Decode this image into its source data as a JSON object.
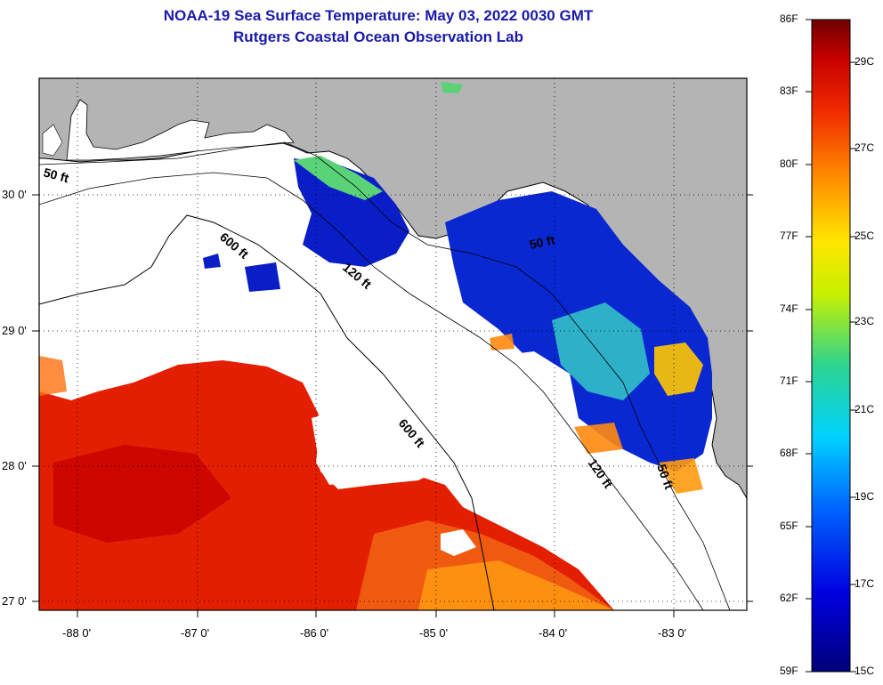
{
  "title": {
    "line1": "NOAA-19 Sea Surface Temperature:  May 03, 2022 0030 GMT",
    "line2": "Rutgers Coastal Ocean Observation Lab"
  },
  "axes": {
    "lon_labels": [
      "-88 0'",
      "-87 0'",
      "-86 0'",
      "-85 0'",
      "-84 0'",
      "-83 0'"
    ],
    "lat_labels": [
      "30 0'",
      "29 0'",
      "28 0'",
      "27 0'"
    ]
  },
  "contours": {
    "c50_west": "50 ft",
    "c600_north": "600 ft",
    "c120_mid": "120 ft",
    "c50_east": "50 ft",
    "c600_south": "600 ft",
    "c120_south": "120 ft",
    "c50_se": "50 ft"
  },
  "colorbar": {
    "f_labels": [
      "86F",
      "83F",
      "80F",
      "77F",
      "74F",
      "71F",
      "68F",
      "65F",
      "62F",
      "59F"
    ],
    "c_labels": [
      "29C",
      "27C",
      "25C",
      "23C",
      "21C",
      "19C",
      "17C",
      "15C"
    ]
  },
  "colors": {
    "land": "#b4b4b4",
    "cloud": "#ffffff",
    "title": "#1a1aa8"
  }
}
